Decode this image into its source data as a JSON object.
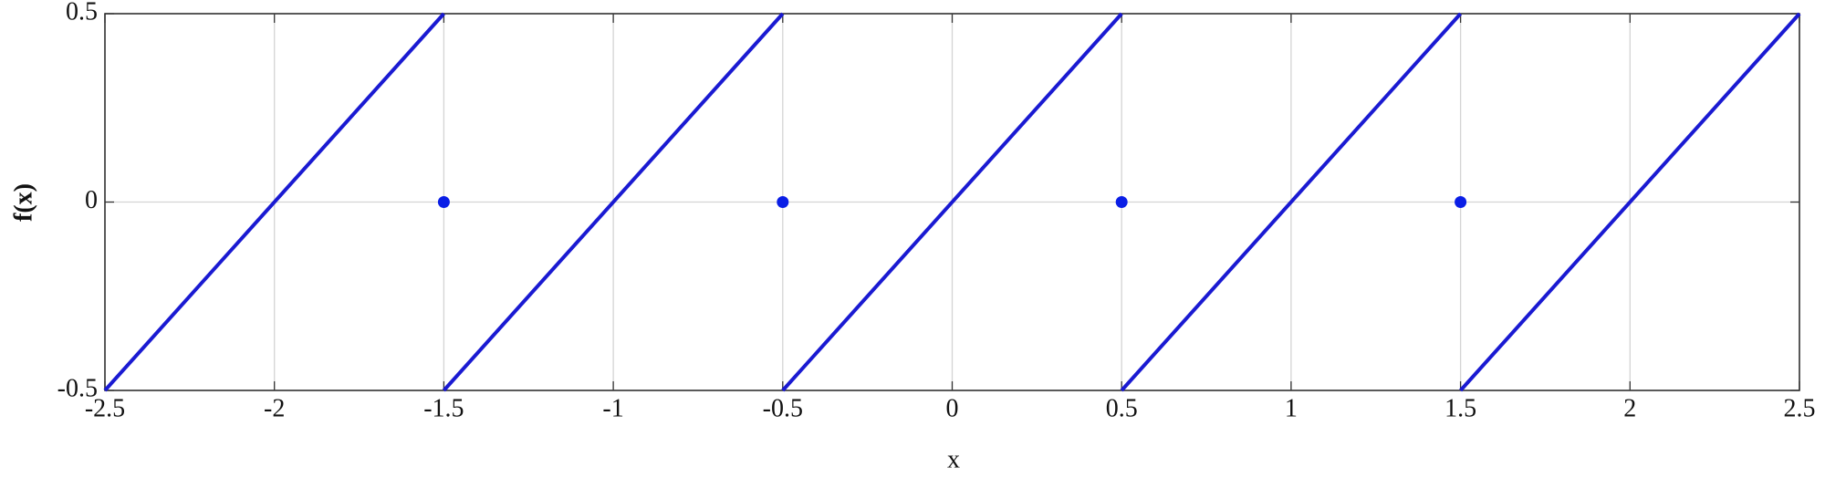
{
  "chart_data": {
    "type": "line",
    "xlabel": "x",
    "ylabel": "f(x)",
    "xlim": [
      -2.5,
      2.5
    ],
    "ylim": [
      -0.5,
      0.5
    ],
    "xticks": [
      -2.5,
      -2,
      -1.5,
      -1,
      -0.5,
      0,
      0.5,
      1,
      1.5,
      2,
      2.5
    ],
    "yticks": [
      -0.5,
      0,
      0.5
    ],
    "grid": true,
    "series": [
      {
        "type": "line",
        "color": "#1a1ad2",
        "x": [
          -2.5,
          -1.5,
          null,
          -1.5,
          -0.5,
          null,
          -0.5,
          0.5,
          null,
          0.5,
          1.5,
          null,
          1.5,
          2.5
        ],
        "values": [
          -0.5,
          0.5,
          null,
          -0.5,
          0.5,
          null,
          -0.5,
          0.5,
          null,
          -0.5,
          0.5,
          null,
          -0.5,
          0.5
        ]
      },
      {
        "type": "scatter",
        "color": "#0a1ee6",
        "x": [
          -1.5,
          -0.5,
          0.5,
          1.5
        ],
        "values": [
          0,
          0,
          0,
          0
        ]
      }
    ]
  }
}
